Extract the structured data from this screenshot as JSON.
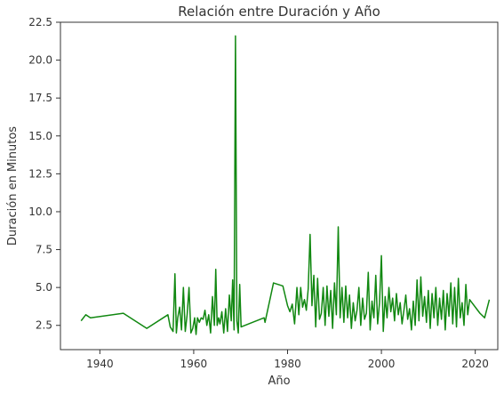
{
  "chart_data": {
    "type": "line",
    "title": "Relación entre Duración y Año",
    "xlabel": "Año",
    "ylabel": "Duración en Minutos",
    "xlim": [
      1931.6,
      2024.8
    ],
    "ylim": [
      0.9,
      22.5
    ],
    "xticks": [
      1940,
      1960,
      1980,
      2000,
      2020
    ],
    "yticks": [
      2.5,
      5.0,
      7.5,
      10.0,
      12.5,
      15.0,
      17.5,
      20.0,
      22.5
    ],
    "ytick_labels": [
      "2.5",
      "5.0",
      "7.5",
      "10.0",
      "12.5",
      "15.0",
      "17.5",
      "20.0",
      "22.5"
    ],
    "grid": false,
    "legend": "none",
    "line_color": "#118811",
    "series": [
      {
        "x": [
          1936,
          1937,
          1938,
          1945,
          1950,
          1954.5,
          1955,
          1955.6,
          1956,
          1956.3,
          1956.6,
          1957,
          1957.4,
          1957.8,
          1958.2,
          1958.6,
          1959,
          1959.4,
          1959.8,
          1960.2,
          1960.5,
          1960.8,
          1961.2,
          1961.6,
          1962,
          1962.4,
          1962.8,
          1963.2,
          1963.6,
          1964,
          1964.4,
          1964.7,
          1965,
          1965.3,
          1965.6,
          1966,
          1966.4,
          1966.8,
          1967.2,
          1967.6,
          1968,
          1968.3,
          1968.6,
          1968.9,
          1969.2,
          1969.5,
          1969.8,
          1970.1,
          1975,
          1975.2,
          1977,
          1979,
          1980,
          1980.5,
          1981,
          1981.5,
          1982,
          1982.4,
          1982.8,
          1983.2,
          1983.6,
          1984,
          1984.4,
          1984.8,
          1985.2,
          1985.6,
          1986,
          1986.4,
          1986.8,
          1987.2,
          1987.6,
          1988,
          1988.4,
          1988.8,
          1989.2,
          1989.6,
          1990,
          1990.4,
          1990.8,
          1991.2,
          1991.6,
          1992,
          1992.4,
          1992.8,
          1993.2,
          1993.6,
          1994,
          1994.4,
          1994.8,
          1995.2,
          1995.6,
          1996,
          1996.4,
          1996.8,
          1997.2,
          1997.6,
          1998,
          1998.4,
          1998.8,
          1999.2,
          1999.6,
          2000,
          2000.4,
          2000.8,
          2001.2,
          2001.6,
          2002,
          2002.4,
          2002.8,
          2003.2,
          2003.6,
          2004,
          2004.4,
          2004.8,
          2005.2,
          2005.6,
          2006,
          2006.4,
          2006.8,
          2007.2,
          2007.6,
          2008,
          2008.4,
          2008.8,
          2009.2,
          2009.6,
          2010,
          2010.4,
          2010.8,
          2011.2,
          2011.6,
          2012,
          2012.4,
          2012.8,
          2013.2,
          2013.6,
          2014,
          2014.4,
          2014.8,
          2015.2,
          2015.6,
          2016,
          2016.4,
          2016.8,
          2017.2,
          2017.6,
          2018,
          2018.4,
          2018.8,
          2021,
          2022,
          2023
        ],
        "y": [
          2.8,
          3.2,
          3.0,
          3.3,
          2.3,
          3.2,
          2.4,
          2.1,
          5.9,
          2.0,
          3.0,
          3.7,
          2.2,
          5.0,
          2.1,
          3.2,
          5.0,
          2.0,
          2.3,
          3.0,
          1.9,
          3.0,
          2.7,
          3.0,
          2.9,
          3.5,
          2.5,
          3.2,
          2.0,
          4.4,
          2.5,
          6.2,
          2.5,
          3.0,
          2.6,
          3.4,
          2.0,
          3.6,
          2.1,
          4.5,
          2.8,
          5.5,
          2.2,
          21.6,
          2.8,
          2.0,
          5.2,
          2.4,
          3.0,
          2.7,
          5.3,
          5.1,
          3.8,
          3.4,
          3.9,
          2.6,
          5.0,
          3.2,
          5.0,
          3.7,
          4.2,
          3.5,
          4.9,
          8.5,
          3.8,
          5.8,
          2.4,
          5.6,
          2.9,
          3.3,
          5.0,
          2.5,
          5.1,
          3.1,
          4.8,
          2.3,
          5.3,
          3.2,
          9.0,
          3.0,
          5.0,
          2.7,
          5.1,
          3.0,
          4.5,
          2.3,
          4.0,
          2.8,
          3.5,
          5.0,
          2.5,
          4.3,
          2.9,
          3.3,
          6.0,
          2.2,
          4.1,
          3.0,
          5.8,
          2.6,
          4.0,
          7.1,
          2.1,
          4.4,
          3.0,
          5.0,
          3.4,
          4.3,
          2.8,
          4.6,
          3.2,
          4.0,
          2.6,
          3.5,
          4.5,
          2.9,
          3.6,
          2.2,
          4.1,
          2.5,
          5.5,
          2.8,
          5.7,
          3.1,
          4.4,
          2.7,
          4.8,
          2.3,
          4.6,
          3.0,
          5.0,
          2.5,
          4.3,
          2.9,
          4.8,
          2.2,
          4.6,
          3.1,
          5.3,
          2.6,
          5.0,
          2.4,
          5.6,
          3.0,
          4.0,
          2.5,
          5.2,
          3.2,
          4.2,
          3.3,
          3.0,
          4.2
        ]
      }
    ]
  }
}
